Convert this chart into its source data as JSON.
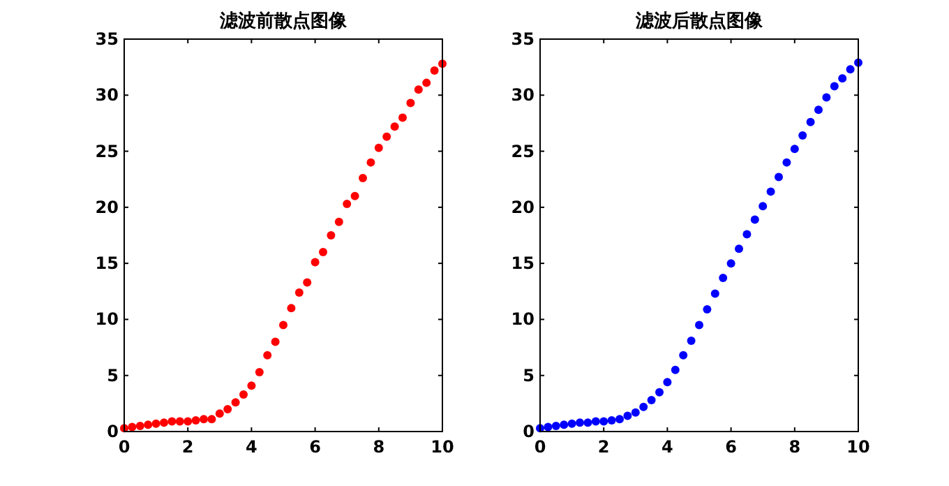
{
  "chart_data": [
    {
      "type": "scatter",
      "title": "滤波前散点图像",
      "xlim": [
        0,
        10
      ],
      "ylim": [
        0,
        35
      ],
      "xticks": [
        0,
        2,
        4,
        6,
        8,
        10
      ],
      "yticks": [
        0,
        5,
        10,
        15,
        20,
        25,
        30,
        35
      ],
      "marker": "circle",
      "series": [
        {
          "color": "#ff0000",
          "x": [
            0,
            0.25,
            0.5,
            0.75,
            1,
            1.25,
            1.5,
            1.75,
            2,
            2.25,
            2.5,
            2.75,
            3,
            3.25,
            3.5,
            3.75,
            4,
            4.25,
            4.5,
            4.75,
            5,
            5.25,
            5.5,
            5.75,
            6,
            6.25,
            6.5,
            6.75,
            7,
            7.25,
            7.5,
            7.75,
            8,
            8.25,
            8.5,
            8.75,
            9,
            9.25,
            9.5,
            9.75,
            10
          ],
          "values": [
            0.3,
            0.4,
            0.5,
            0.6,
            0.7,
            0.8,
            0.9,
            0.9,
            0.9,
            1.0,
            1.1,
            1.1,
            1.6,
            2.0,
            2.6,
            3.3,
            4.1,
            5.3,
            6.8,
            8.0,
            9.5,
            11.0,
            12.4,
            13.3,
            15.1,
            16.0,
            17.5,
            18.7,
            20.3,
            21.0,
            22.6,
            24.0,
            25.3,
            26.3,
            27.2,
            28.0,
            29.3,
            30.5,
            31.1,
            32.2,
            32.8
          ]
        }
      ]
    },
    {
      "type": "scatter",
      "title": "滤波后散点图像",
      "xlim": [
        0,
        10
      ],
      "ylim": [
        0,
        35
      ],
      "xticks": [
        0,
        2,
        4,
        6,
        8,
        10
      ],
      "yticks": [
        0,
        5,
        10,
        15,
        20,
        25,
        30,
        35
      ],
      "marker": "circle",
      "series": [
        {
          "color": "#0000ff",
          "x": [
            0,
            0.25,
            0.5,
            0.75,
            1,
            1.25,
            1.5,
            1.75,
            2,
            2.25,
            2.5,
            2.75,
            3,
            3.25,
            3.5,
            3.75,
            4,
            4.25,
            4.5,
            4.75,
            5,
            5.25,
            5.5,
            5.75,
            6,
            6.25,
            6.5,
            6.75,
            7,
            7.25,
            7.5,
            7.75,
            8,
            8.25,
            8.5,
            8.75,
            9,
            9.25,
            9.5,
            9.75,
            10
          ],
          "values": [
            0.3,
            0.4,
            0.5,
            0.6,
            0.7,
            0.8,
            0.8,
            0.9,
            0.9,
            1.0,
            1.1,
            1.4,
            1.7,
            2.2,
            2.8,
            3.5,
            4.4,
            5.5,
            6.8,
            8.1,
            9.5,
            10.9,
            12.3,
            13.7,
            15.0,
            16.3,
            17.6,
            18.9,
            20.1,
            21.4,
            22.7,
            24.0,
            25.2,
            26.4,
            27.6,
            28.7,
            29.8,
            30.8,
            31.5,
            32.3,
            32.9
          ]
        }
      ]
    }
  ]
}
